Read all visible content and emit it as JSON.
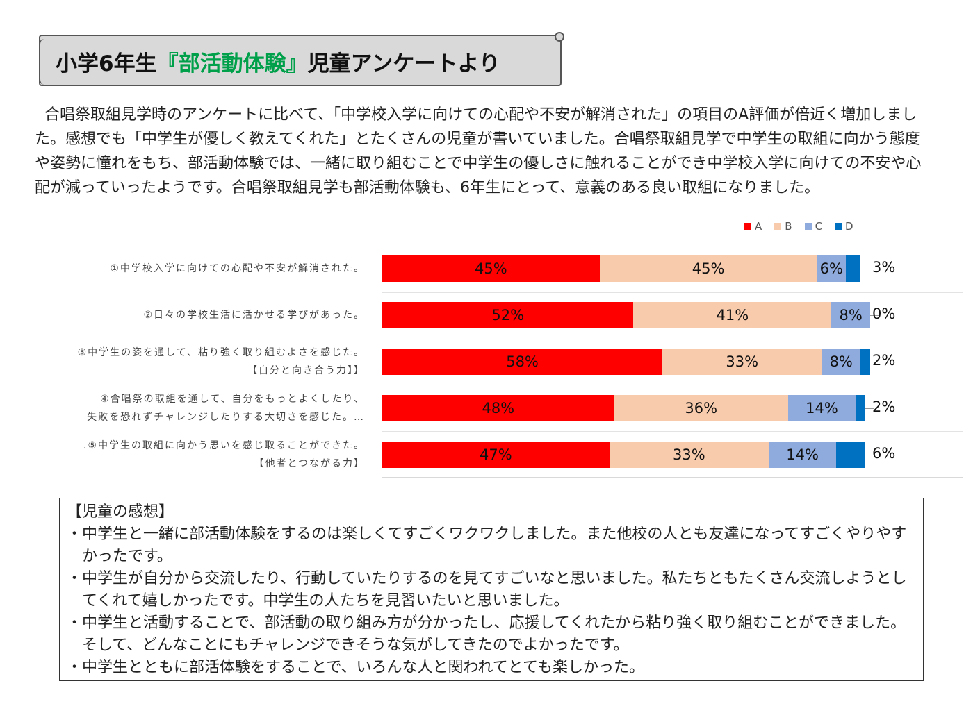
{
  "header": {
    "title_pre": "小学6年生",
    "title_highlight": "『部活動体験』",
    "title_post": "児童アンケートより",
    "highlight_color": "#00a04a"
  },
  "intro": "合唱祭取組見学時のアンケートに比べて、「中学校入学に向けての心配や不安が解消された」の項目のA評価が倍近く増加しました。感想でも「中学生が優しく教えてくれた」とたくさんの児童が書いていました。合唱祭取組見学で中学生の取組に向かう態度や姿勢に憧れをもち、部活動体験では、一緒に取り組むことで中学生の優しさに触れることができ中学校入学に向けての不安や心配が減っていったようです。合唱祭取組見学も部活動体験も、6年生にとって、意義のある良い取組になりました。",
  "chart_data": {
    "type": "bar",
    "orientation": "horizontal",
    "stacked": true,
    "categories": [
      [
        "①中学校入学に向けての心配や不安が解消された。"
      ],
      [
        "②日々の学校生活に活かせる学びがあった。"
      ],
      [
        "③中学生の姿を通して、粘り強く取り組むよさを感じた。",
        "【自分と向き合う力】】"
      ],
      [
        "④合唱祭の取組を通して、自分をもっとよくしたり、",
        "失敗を恐れずチャレンジしたりする大切さを感じた。…"
      ],
      [
        ".⑤中学生の取組に向かう思いを感じ取ることができた。",
        "【他者とつながる力】"
      ]
    ],
    "series": [
      {
        "name": "A",
        "color": "#ff0000",
        "values": [
          45,
          52,
          58,
          48,
          47
        ]
      },
      {
        "name": "B",
        "color": "#f8cbad",
        "values": [
          45,
          41,
          33,
          36,
          33
        ]
      },
      {
        "name": "C",
        "color": "#8faadc",
        "values": [
          6,
          8,
          8,
          14,
          14
        ]
      },
      {
        "name": "D",
        "color": "#0070c0",
        "values": [
          3,
          0,
          2,
          2,
          6
        ]
      }
    ],
    "value_suffix": "%",
    "legend_position": "top-right",
    "xlim": [
      0,
      100
    ]
  },
  "comments": {
    "heading": "【児童の感想】",
    "items": [
      "・中学生と一緒に部活動体験をするのは楽しくてすごくワクワクしました。また他校の人とも友達になってすごくやりやすかったです。",
      "・中学生が自分から交流したり、行動していたりするのを見てすごいなと思いました。私たちともたくさん交流しようとしてくれて嬉しかったです。中学生の人たちを見習いたいと思いました。",
      "・中学生と活動することで、部活動の取り組み方が分かったし、応援してくれたから粘り強く取り組むことができました。そして、どんなことにもチャレンジできそうな気がしてきたのでよかったです。",
      "・中学生とともに部活体験をすることで、いろんな人と関われてとても楽しかった。"
    ]
  }
}
